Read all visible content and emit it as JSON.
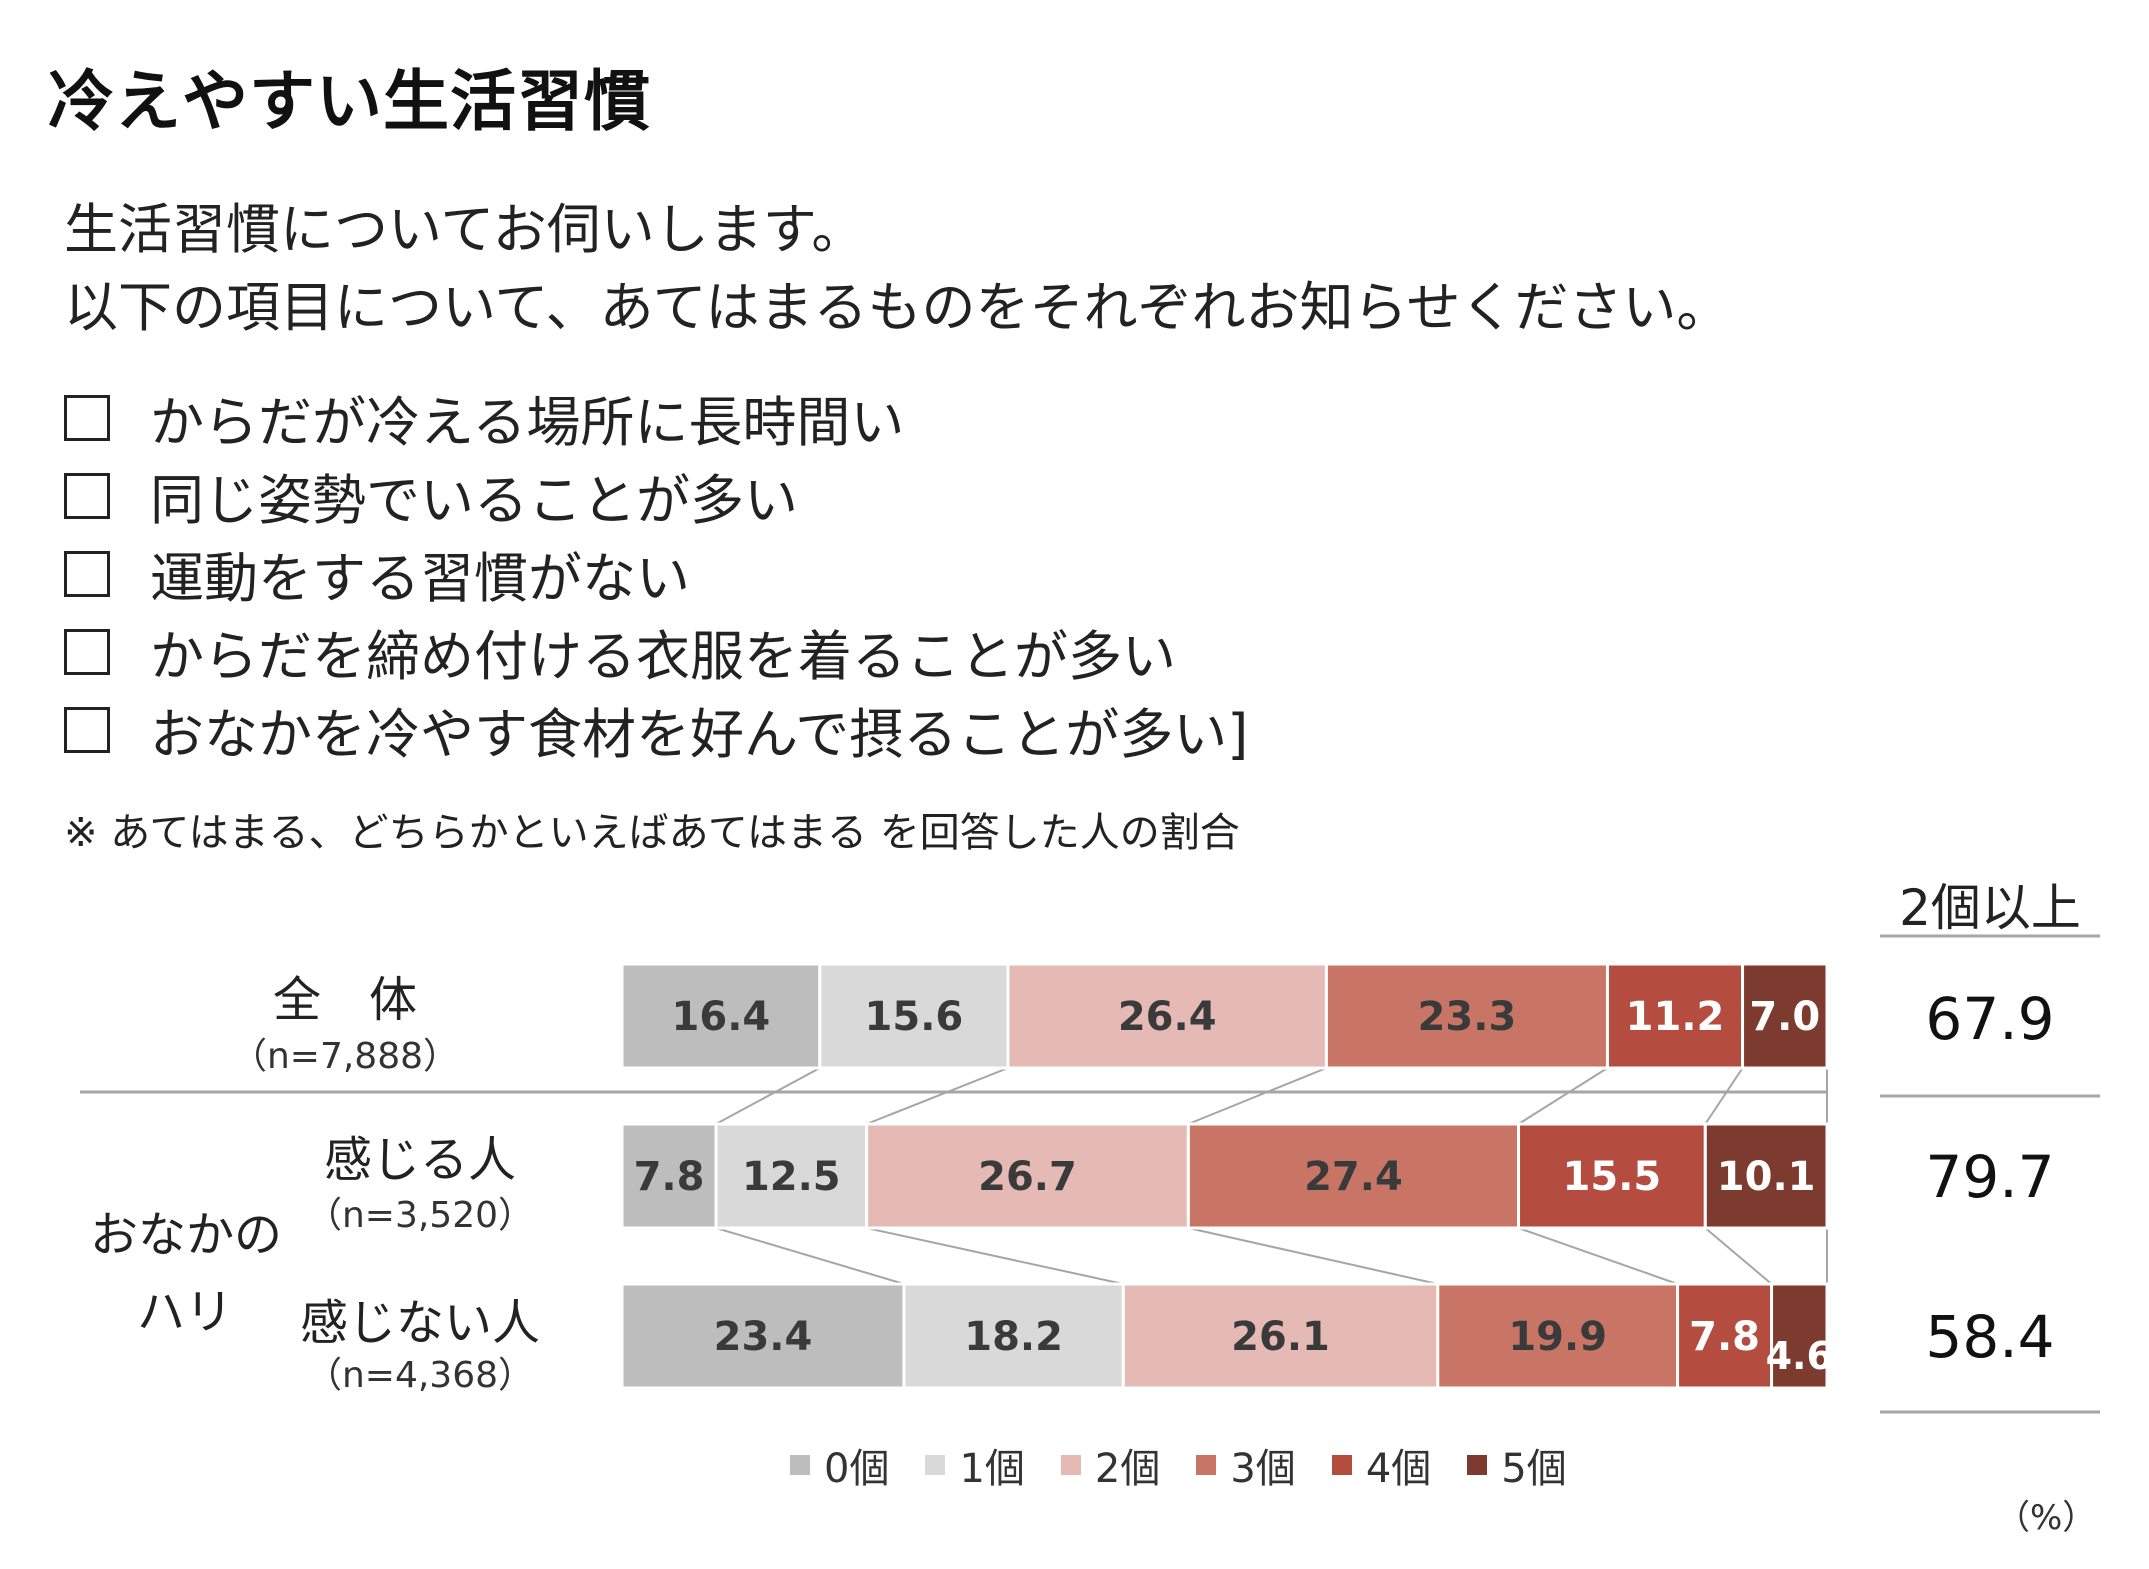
{
  "title": "冷えやすい生活習慣",
  "question": [
    "生活習慣についてお伺いします。",
    "以下の項目について、あてはまるものをそれぞれお知らせください。"
  ],
  "options": [
    "からだが冷える場所に長時間い",
    "同じ姿勢でいることが多い",
    "運動をする習慣がない",
    "からだを締め付ける衣服を着ることが多い",
    "おなかを冷やす食材を好んで摂ることが多い]"
  ],
  "note": "※ あてはまる、どちらかといえばあてはまる を回答した人の割合",
  "group_header": "2個以上",
  "group_label": [
    "おなかの",
    "ハリ"
  ],
  "unit": "（%）",
  "chart_data": {
    "type": "bar",
    "orientation": "horizontal",
    "stacked": true,
    "xlim": [
      0,
      100
    ],
    "categories": [
      {
        "label": "全　体",
        "n": "（n=7,888）"
      },
      {
        "label": "感じる人",
        "n": "（n=3,520）"
      },
      {
        "label": "感じない人",
        "n": "（n=4,368）"
      }
    ],
    "series": [
      {
        "name": "0個",
        "color": "#bdbdbd",
        "text_color": "#3a3a3a",
        "values": [
          16.4,
          7.8,
          23.4
        ]
      },
      {
        "name": "1個",
        "color": "#d9d9d9",
        "text_color": "#3a3a3a",
        "values": [
          15.6,
          12.5,
          18.2
        ]
      },
      {
        "name": "2個",
        "color": "#e6bab4",
        "text_color": "#3a3a3a",
        "values": [
          26.4,
          26.7,
          26.1
        ]
      },
      {
        "name": "3個",
        "color": "#c87565",
        "text_color": "#3a3a3a",
        "values": [
          23.3,
          27.4,
          19.9
        ]
      },
      {
        "name": "4個",
        "color": "#b44d40",
        "text_color": "#ffffff",
        "values": [
          11.2,
          15.5,
          7.8
        ]
      },
      {
        "name": "5個",
        "color": "#7d3a2e",
        "text_color": "#ffffff",
        "values": [
          7.0,
          10.1,
          4.6
        ]
      }
    ],
    "totals_2plus": [
      67.9,
      79.7,
      58.4
    ],
    "legend_position": "bottom"
  }
}
